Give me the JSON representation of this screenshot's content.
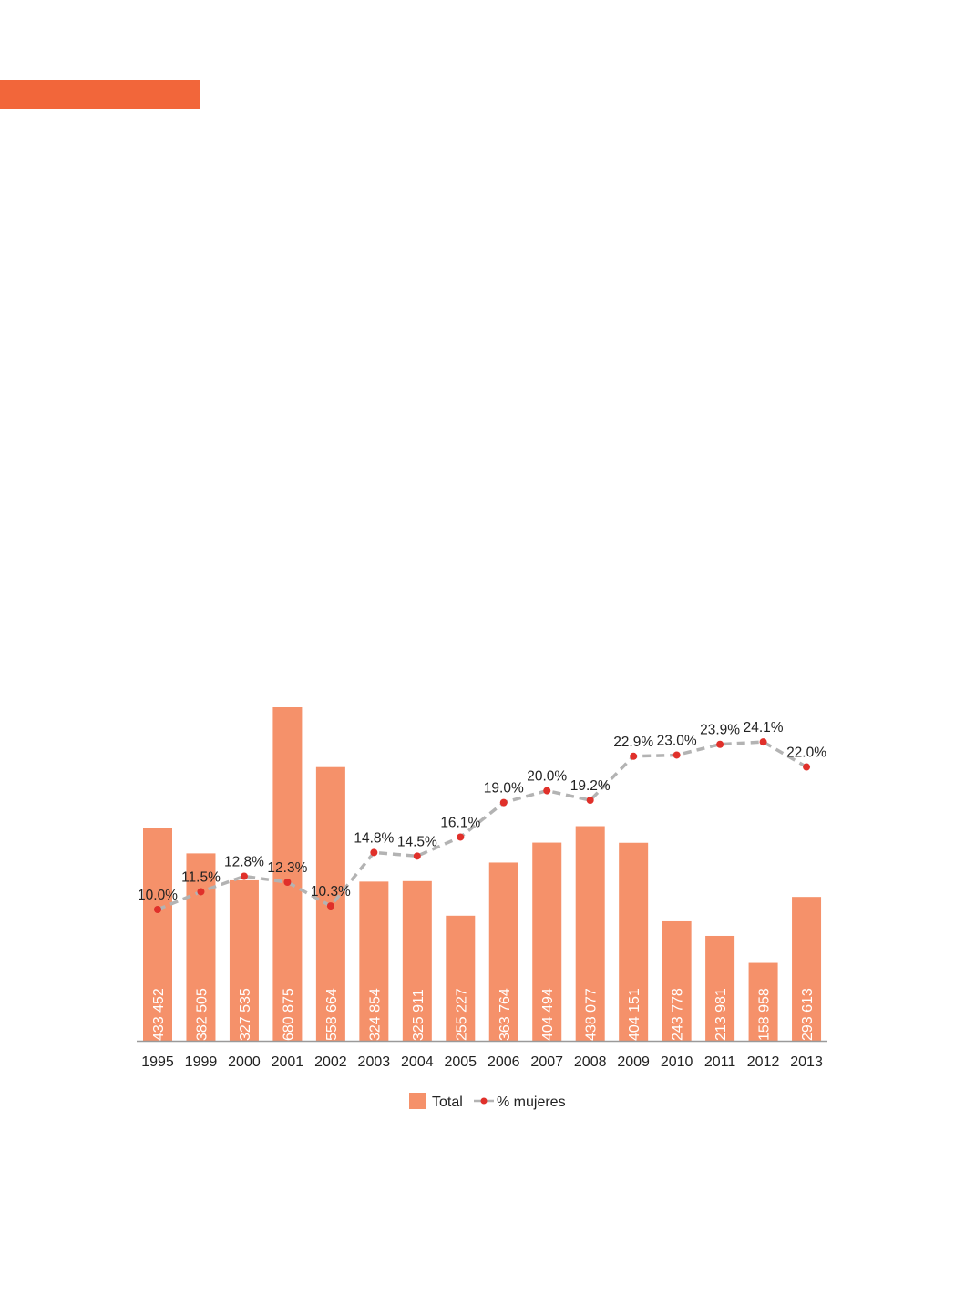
{
  "colors": {
    "accent": "#f2663a",
    "bar": "#f5916a",
    "line": "#b3b3b3",
    "point": "#e0302a",
    "axis": "#9a9a9a"
  },
  "chart_data": {
    "type": "bar",
    "categories": [
      "1995",
      "1999",
      "2000",
      "2001",
      "2002",
      "2003",
      "2004",
      "2005",
      "2006",
      "2007",
      "2008",
      "2009",
      "2010",
      "2011",
      "2012",
      "2013"
    ],
    "series": [
      {
        "name": "Total",
        "type": "bar",
        "values": [
          433452,
          382505,
          327535,
          680875,
          558664,
          324854,
          325911,
          255227,
          363764,
          404494,
          438077,
          404151,
          243778,
          213981,
          158958,
          293613
        ],
        "labels": [
          "433 452",
          "382 505",
          "327 535",
          "680 875",
          "558 664",
          "324 854",
          "325 911",
          "255 227",
          "363 764",
          "404 494",
          "438 077",
          "404 151",
          "243 778",
          "213 981",
          "158 958",
          "293 613"
        ]
      },
      {
        "name": "% mujeres",
        "type": "line",
        "values": [
          10.0,
          11.5,
          12.8,
          12.3,
          10.3,
          14.8,
          14.5,
          16.1,
          19.0,
          20.0,
          19.2,
          22.9,
          23.0,
          23.9,
          24.1,
          22.0
        ],
        "labels": [
          "10.0%",
          "11.5%",
          "12.8%",
          "12.3%",
          "10.3%",
          "14.8%",
          "14.5%",
          "16.1%",
          "19.0%",
          "20.0%",
          "19.2%",
          "22.9%",
          "23.0%",
          "23.9%",
          "24.1%",
          "22.0%"
        ]
      }
    ],
    "legend": {
      "position": "bottom",
      "entries": [
        "Total",
        "% mujeres"
      ]
    },
    "grid": false
  }
}
